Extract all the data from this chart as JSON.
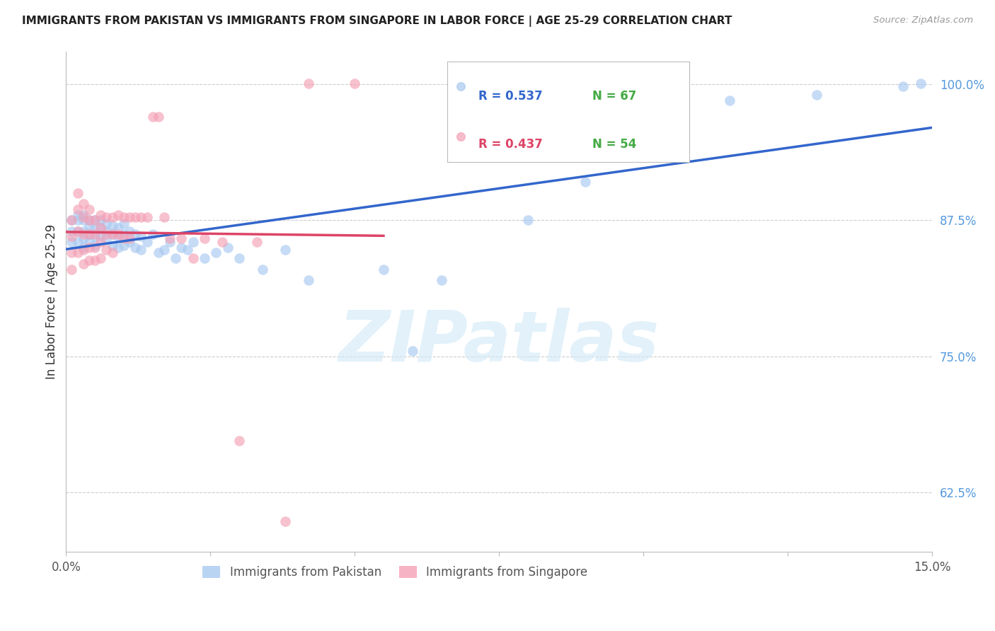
{
  "title": "IMMIGRANTS FROM PAKISTAN VS IMMIGRANTS FROM SINGAPORE IN LABOR FORCE | AGE 25-29 CORRELATION CHART",
  "source": "Source: ZipAtlas.com",
  "ylabel": "In Labor Force | Age 25-29",
  "xlim": [
    0.0,
    0.15
  ],
  "ylim": [
    0.57,
    1.03
  ],
  "xticks": [
    0.0,
    0.025,
    0.05,
    0.075,
    0.1,
    0.125,
    0.15
  ],
  "ytick_positions": [
    0.625,
    0.75,
    0.875,
    1.0
  ],
  "ytick_labels": [
    "62.5%",
    "75.0%",
    "87.5%",
    "100.0%"
  ],
  "xtick_labels": [
    "0.0%",
    "",
    "",
    "",
    "",
    "",
    "15.0%"
  ],
  "pakistan_R": 0.537,
  "pakistan_N": 67,
  "singapore_R": 0.437,
  "singapore_N": 54,
  "pakistan_color": "#a8c8f0",
  "singapore_color": "#f4a0b5",
  "pakistan_line_color": "#3366cc",
  "singapore_line_color": "#dd4466",
  "n_color": "#44aa44",
  "watermark": "ZIPatlas",
  "watermark_color": "#d0e8f8",
  "legend_R_pak_color": "#3366cc",
  "legend_R_sing_color": "#dd4466",
  "legend_N_color": "#44aa44",
  "pakistan_x": [
    0.001,
    0.001,
    0.001,
    0.002,
    0.002,
    0.002,
    0.002,
    0.003,
    0.003,
    0.003,
    0.003,
    0.003,
    0.004,
    0.004,
    0.004,
    0.004,
    0.005,
    0.005,
    0.005,
    0.005,
    0.006,
    0.006,
    0.006,
    0.007,
    0.007,
    0.007,
    0.008,
    0.008,
    0.008,
    0.009,
    0.009,
    0.009,
    0.01,
    0.01,
    0.01,
    0.011,
    0.011,
    0.012,
    0.012,
    0.013,
    0.013,
    0.014,
    0.015,
    0.016,
    0.017,
    0.018,
    0.019,
    0.02,
    0.021,
    0.022,
    0.024,
    0.026,
    0.028,
    0.03,
    0.034,
    0.038,
    0.042,
    0.055,
    0.06,
    0.065,
    0.08,
    0.09,
    0.105,
    0.115,
    0.13,
    0.145,
    0.148
  ],
  "pakistan_y": [
    0.875,
    0.865,
    0.855,
    0.88,
    0.875,
    0.865,
    0.855,
    0.88,
    0.875,
    0.865,
    0.858,
    0.85,
    0.875,
    0.87,
    0.862,
    0.855,
    0.875,
    0.868,
    0.86,
    0.852,
    0.875,
    0.868,
    0.86,
    0.872,
    0.865,
    0.858,
    0.87,
    0.862,
    0.852,
    0.868,
    0.86,
    0.85,
    0.872,
    0.862,
    0.852,
    0.865,
    0.855,
    0.862,
    0.85,
    0.86,
    0.848,
    0.855,
    0.862,
    0.845,
    0.848,
    0.855,
    0.84,
    0.85,
    0.848,
    0.855,
    0.84,
    0.845,
    0.85,
    0.84,
    0.83,
    0.848,
    0.82,
    0.83,
    0.755,
    0.82,
    0.875,
    0.91,
    0.96,
    0.985,
    0.99,
    0.998,
    1.001
  ],
  "singapore_x": [
    0.001,
    0.001,
    0.001,
    0.001,
    0.002,
    0.002,
    0.002,
    0.002,
    0.003,
    0.003,
    0.003,
    0.003,
    0.003,
    0.004,
    0.004,
    0.004,
    0.004,
    0.004,
    0.005,
    0.005,
    0.005,
    0.005,
    0.006,
    0.006,
    0.006,
    0.006,
    0.007,
    0.007,
    0.007,
    0.008,
    0.008,
    0.008,
    0.009,
    0.009,
    0.01,
    0.01,
    0.011,
    0.011,
    0.012,
    0.013,
    0.014,
    0.015,
    0.016,
    0.017,
    0.018,
    0.02,
    0.022,
    0.024,
    0.027,
    0.03,
    0.033,
    0.038,
    0.042,
    0.05
  ],
  "singapore_y": [
    0.875,
    0.86,
    0.845,
    0.83,
    0.9,
    0.885,
    0.865,
    0.845,
    0.89,
    0.878,
    0.862,
    0.848,
    0.835,
    0.885,
    0.875,
    0.862,
    0.85,
    0.838,
    0.875,
    0.862,
    0.85,
    0.838,
    0.88,
    0.868,
    0.855,
    0.84,
    0.878,
    0.862,
    0.848,
    0.878,
    0.862,
    0.845,
    0.88,
    0.862,
    0.878,
    0.858,
    0.878,
    0.858,
    0.878,
    0.878,
    0.878,
    0.97,
    0.97,
    0.878,
    0.858,
    0.858,
    0.84,
    0.858,
    0.855,
    0.672,
    0.855,
    0.598,
    1.001,
    1.001
  ]
}
